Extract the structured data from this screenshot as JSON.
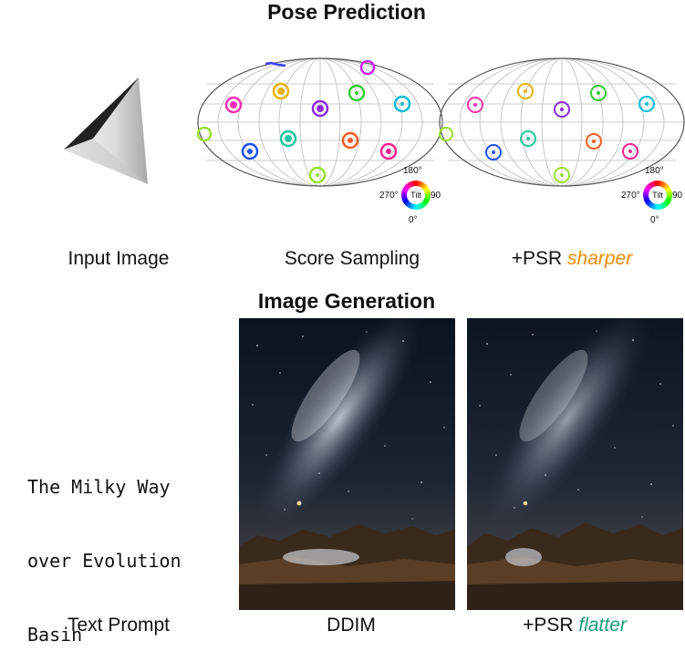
{
  "pose_section": {
    "title": "Pose Prediction",
    "captions": {
      "input": "Input Image",
      "score": "Score Sampling",
      "psr_prefix": "+PSR ",
      "psr_emphasis": "sharper"
    },
    "emphasis_color": "#f08c00",
    "tilt_legend": {
      "label": "Tilt",
      "top": "180°",
      "left": "270°",
      "right": "90",
      "bottom": "0°"
    }
  },
  "generation_section": {
    "title": "Image Generation",
    "prompt_lines": [
      "The Milky Way",
      "over Evolution",
      "Basin"
    ],
    "captions": {
      "prompt": "Text Prompt",
      "ddim": "DDIM",
      "psr_prefix": "+PSR ",
      "psr_emphasis": "flatter"
    },
    "emphasis_color": "#1a9a7a"
  }
}
